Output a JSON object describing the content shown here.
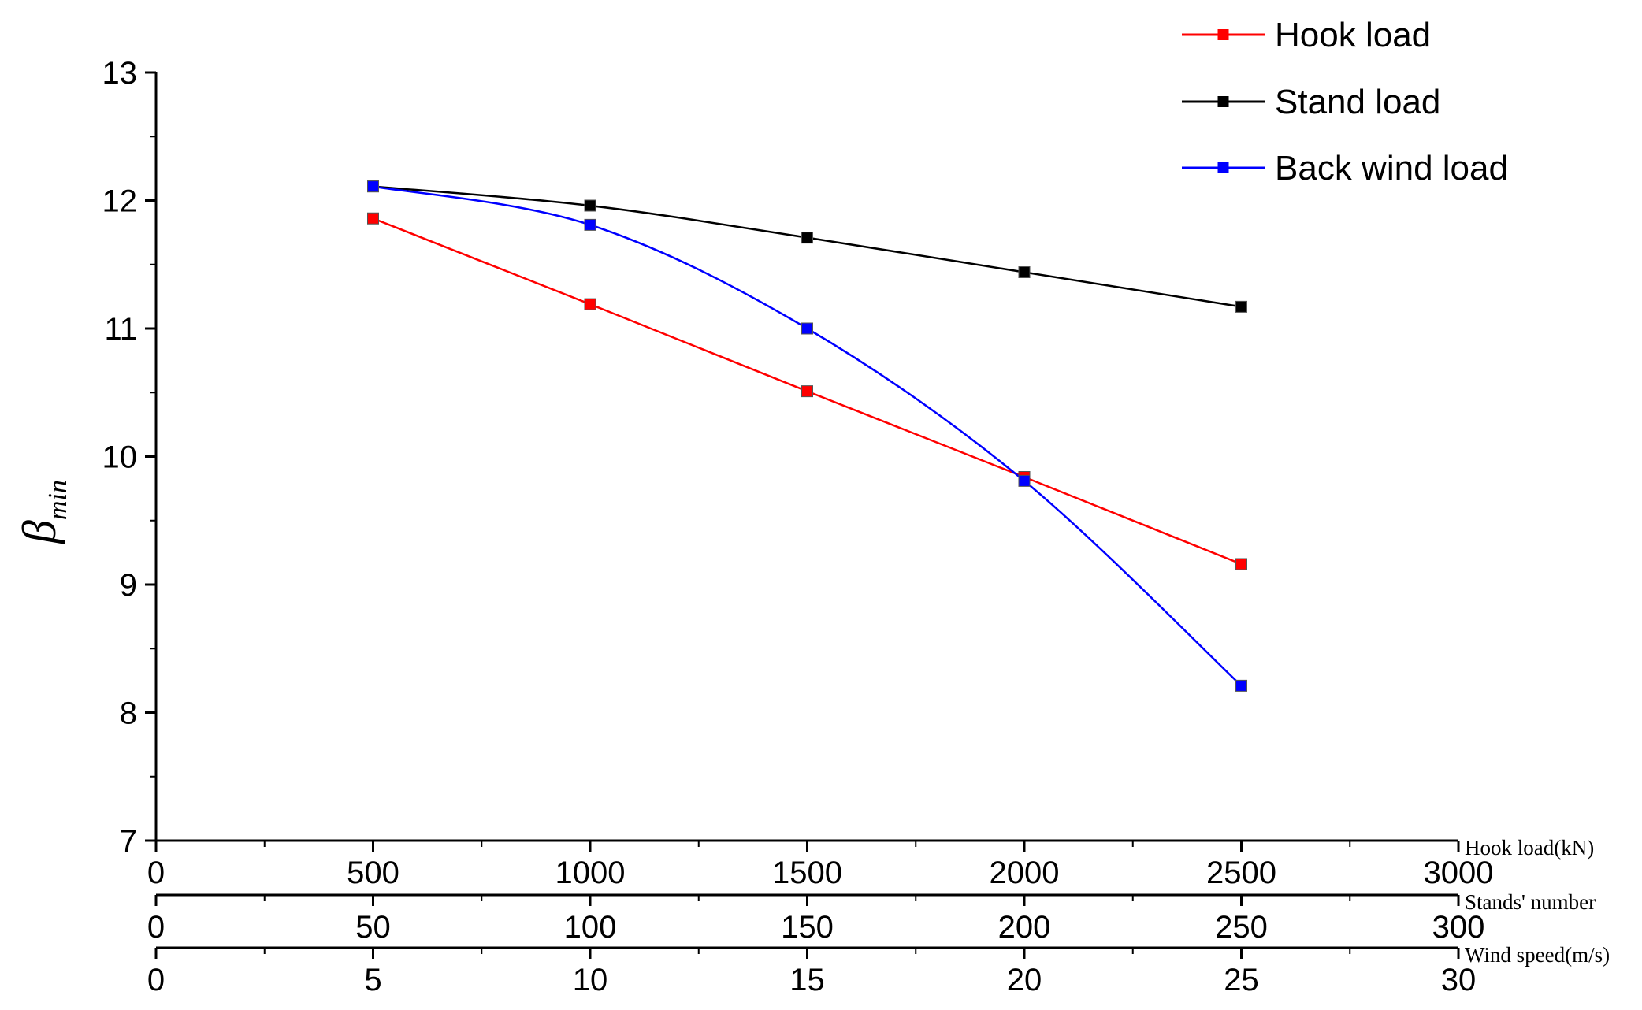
{
  "chart_data": {
    "type": "line",
    "ylabel_main": "β",
    "ylabel_sub": "min",
    "ylim": [
      7,
      13
    ],
    "yticks": [
      "7",
      "8",
      "9",
      "10",
      "11",
      "12",
      "13"
    ],
    "x_axes": [
      {
        "title": "Hook load(kN)",
        "range": [
          0,
          3000
        ],
        "ticks": [
          "0",
          "500",
          "1000",
          "1500",
          "2000",
          "2500",
          "3000"
        ]
      },
      {
        "title": "Stands' number",
        "range": [
          0,
          300
        ],
        "ticks": [
          "0",
          "50",
          "100",
          "150",
          "200",
          "250",
          "300"
        ]
      },
      {
        "title": "Wind speed(m/s)",
        "range": [
          0,
          30
        ],
        "ticks": [
          "0",
          "5",
          "10",
          "15",
          "20",
          "25",
          "30"
        ]
      }
    ],
    "series": [
      {
        "name": "Hook load",
        "color": "#ff0000",
        "axis": "Hook load(kN)",
        "smooth": false,
        "x": [
          500,
          1000,
          1500,
          2000,
          2500
        ],
        "y": [
          11.86,
          11.19,
          10.51,
          9.84,
          9.16
        ]
      },
      {
        "name": "Stand load",
        "color": "#000000",
        "axis": "Stands' number",
        "smooth": true,
        "x": [
          50,
          100,
          150,
          200,
          250
        ],
        "y": [
          12.11,
          11.96,
          11.71,
          11.44,
          11.17
        ]
      },
      {
        "name": "Back wind load",
        "color": "#0000ff",
        "axis": "Wind speed(m/s)",
        "smooth": true,
        "x": [
          5,
          10,
          15,
          20,
          25
        ],
        "y": [
          12.11,
          11.81,
          11.0,
          9.81,
          8.21
        ]
      }
    ],
    "legend_position": "top-right",
    "grid": false
  }
}
